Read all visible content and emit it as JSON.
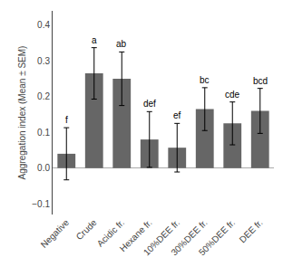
{
  "chart_data": {
    "type": "bar",
    "categories": [
      "Negative",
      "Crude",
      "Acidic fr.",
      "Hexane fr.",
      "10%DEE fr.",
      "30%DEE fr.",
      "50%DEE fr.",
      "DEE fr."
    ],
    "values": [
      0.04,
      0.265,
      0.25,
      0.08,
      0.057,
      0.165,
      0.125,
      0.16
    ],
    "errors": [
      0.073,
      0.072,
      0.075,
      0.078,
      0.068,
      0.06,
      0.06,
      0.063
    ],
    "annotations": [
      "f",
      "a",
      "ab",
      "def",
      "ef",
      "bc",
      "cde",
      "bcd"
    ],
    "color": "#666666",
    "ylabel": "Aggregation index (Mean ± SEM)",
    "ylim": [
      -0.13,
      0.44
    ],
    "yticks": [
      {
        "value": -0.1,
        "label": "−0.1"
      },
      {
        "value": 0.0,
        "label": "0.0"
      },
      0.1,
      0.2,
      0.3,
      0.4
    ],
    "grid": false
  }
}
